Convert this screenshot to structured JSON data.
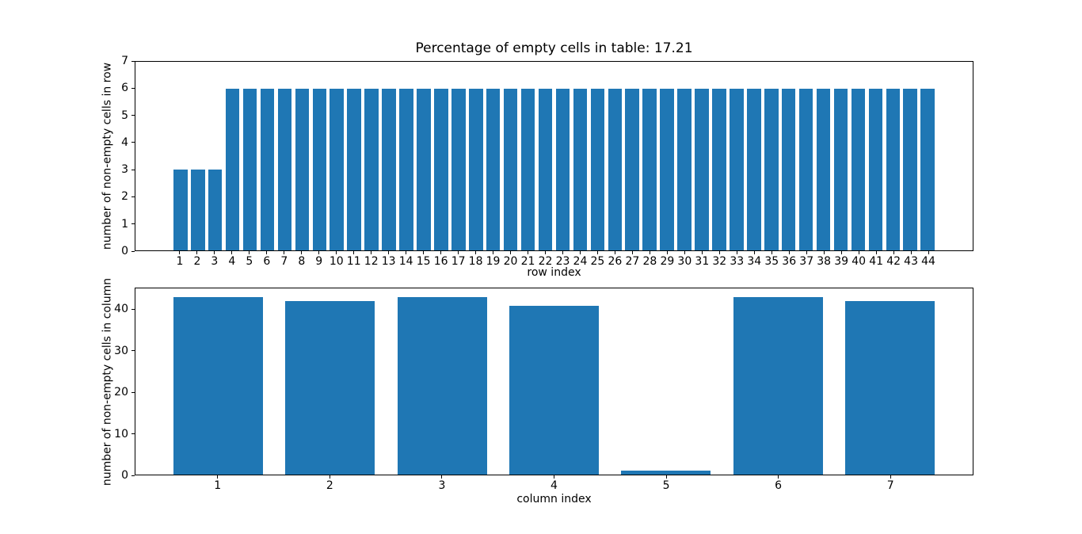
{
  "figure": {
    "background": "#ffffff"
  },
  "colors": {
    "bar": "#1f77b4",
    "axis": "#000000",
    "text": "#000000"
  },
  "chart_data": [
    {
      "type": "bar",
      "title": "Percentage of empty cells in table: 17.21",
      "xlabel": "row index",
      "ylabel": "number of non-empty cells in row",
      "categories": [
        "1",
        "2",
        "3",
        "4",
        "5",
        "6",
        "7",
        "8",
        "9",
        "10",
        "11",
        "12",
        "13",
        "14",
        "15",
        "16",
        "17",
        "18",
        "19",
        "20",
        "21",
        "22",
        "23",
        "24",
        "25",
        "26",
        "27",
        "28",
        "29",
        "30",
        "31",
        "32",
        "33",
        "34",
        "35",
        "36",
        "37",
        "38",
        "39",
        "40",
        "41",
        "42",
        "43",
        "44"
      ],
      "values": [
        3,
        3,
        3,
        6,
        6,
        6,
        6,
        6,
        6,
        6,
        6,
        6,
        6,
        6,
        6,
        6,
        6,
        6,
        6,
        6,
        6,
        6,
        6,
        6,
        6,
        6,
        6,
        6,
        6,
        6,
        6,
        6,
        6,
        6,
        6,
        6,
        6,
        6,
        6,
        6,
        6,
        6,
        6,
        6
      ],
      "ylim": [
        0,
        7
      ],
      "yticks": [
        0,
        1,
        2,
        3,
        4,
        5,
        6,
        7
      ],
      "grid": false,
      "legend": null,
      "bar_color": "#1f77b4"
    },
    {
      "type": "bar",
      "title": "",
      "xlabel": "column index",
      "ylabel": "number of non-empty cells in column",
      "categories": [
        "1",
        "2",
        "3",
        "4",
        "5",
        "6",
        "7"
      ],
      "values": [
        43,
        42,
        43,
        41,
        1,
        43,
        42
      ],
      "ylim": [
        0,
        45.15
      ],
      "yticks": [
        0,
        10,
        20,
        30,
        40
      ],
      "grid": false,
      "legend": null,
      "bar_color": "#1f77b4"
    }
  ]
}
